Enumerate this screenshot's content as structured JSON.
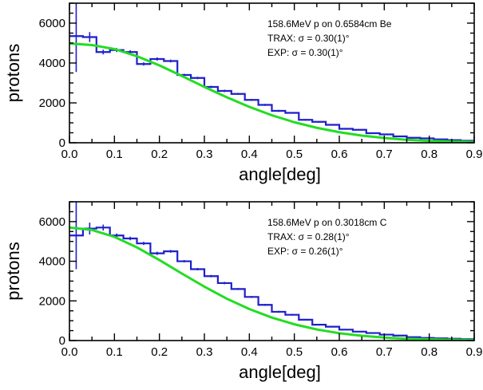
{
  "chart_data": [
    {
      "type": "line",
      "xlabel": "angle[deg]",
      "ylabel": "protons",
      "xlim": [
        0,
        0.9
      ],
      "ylim": [
        0,
        7000
      ],
      "xticks": [
        "0.0",
        "0.1",
        "0.2",
        "0.3",
        "0.4",
        "0.5",
        "0.6",
        "0.7",
        "0.8",
        "0.9"
      ],
      "yticks": [
        "0",
        "2000",
        "4000",
        "6000"
      ],
      "annotations": [
        "158.6MeV p on 0.6584cm Be",
        "TRAX: σ = 0.30(1)°",
        "EXP: σ = 0.30(1)°"
      ],
      "series": [
        {
          "style": "step",
          "color": "#1f1fcc",
          "bin_width": 0.03,
          "x": [
            0.015,
            0.045,
            0.075,
            0.105,
            0.135,
            0.165,
            0.195,
            0.225,
            0.255,
            0.285,
            0.315,
            0.345,
            0.375,
            0.405,
            0.435,
            0.465,
            0.495,
            0.525,
            0.555,
            0.585,
            0.615,
            0.645,
            0.675,
            0.705,
            0.735,
            0.765,
            0.795,
            0.825,
            0.855,
            0.885
          ],
          "values": [
            5350,
            5300,
            4550,
            4650,
            4550,
            3950,
            4200,
            4100,
            3400,
            3250,
            2800,
            2600,
            2450,
            2150,
            1900,
            1600,
            1500,
            1150,
            1050,
            900,
            700,
            650,
            480,
            420,
            320,
            250,
            220,
            170,
            130,
            100
          ],
          "errors": [
            1800,
            250,
            120,
            100,
            90,
            80,
            80,
            70,
            60,
            60,
            60,
            60,
            50,
            50,
            50,
            50,
            40,
            40,
            40,
            40,
            30,
            30,
            30,
            30,
            30,
            20,
            20,
            20,
            20,
            20
          ]
        },
        {
          "style": "smooth",
          "color": "#22dd22",
          "x": [
            0.0,
            0.05,
            0.1,
            0.15,
            0.2,
            0.25,
            0.3,
            0.35,
            0.4,
            0.45,
            0.5,
            0.55,
            0.6,
            0.65,
            0.7,
            0.75,
            0.8,
            0.85,
            0.9
          ],
          "values": [
            4980,
            4900,
            4700,
            4340,
            3880,
            3350,
            2800,
            2280,
            1800,
            1380,
            1030,
            750,
            530,
            360,
            240,
            150,
            95,
            60,
            40
          ]
        }
      ]
    },
    {
      "type": "line",
      "xlabel": "angle[deg]",
      "ylabel": "protons",
      "xlim": [
        0,
        0.9
      ],
      "ylim": [
        0,
        7000
      ],
      "xticks": [
        "0.0",
        "0.1",
        "0.2",
        "0.3",
        "0.4",
        "0.5",
        "0.6",
        "0.7",
        "0.8",
        "0.9"
      ],
      "yticks": [
        "0",
        "2000",
        "4000",
        "6000"
      ],
      "annotations": [
        "158.6MeV p on 0.3018cm C",
        "TRAX: σ = 0.28(1)°",
        "EXP: σ = 0.26(1)°"
      ],
      "series": [
        {
          "style": "step",
          "color": "#1f1fcc",
          "bin_width": 0.03,
          "x": [
            0.015,
            0.045,
            0.075,
            0.105,
            0.135,
            0.165,
            0.195,
            0.225,
            0.255,
            0.285,
            0.315,
            0.345,
            0.375,
            0.405,
            0.435,
            0.465,
            0.495,
            0.525,
            0.555,
            0.585,
            0.615,
            0.645,
            0.675,
            0.705,
            0.735,
            0.765,
            0.795,
            0.825,
            0.855,
            0.885
          ],
          "values": [
            5300,
            5650,
            5700,
            5300,
            5150,
            4900,
            4400,
            4500,
            4000,
            3600,
            3250,
            2900,
            2600,
            2200,
            1800,
            1450,
            1300,
            1050,
            800,
            700,
            550,
            450,
            380,
            300,
            250,
            170,
            130,
            110,
            90,
            70
          ],
          "errors": [
            1700,
            300,
            150,
            100,
            90,
            80,
            80,
            70,
            60,
            60,
            60,
            60,
            50,
            50,
            50,
            50,
            40,
            40,
            40,
            40,
            30,
            30,
            30,
            30,
            30,
            20,
            20,
            20,
            20,
            20
          ]
        },
        {
          "style": "smooth",
          "color": "#22dd22",
          "x": [
            0.0,
            0.05,
            0.1,
            0.15,
            0.2,
            0.25,
            0.3,
            0.35,
            0.4,
            0.45,
            0.5,
            0.55,
            0.6,
            0.65,
            0.7,
            0.75,
            0.8,
            0.85,
            0.9
          ],
          "values": [
            5700,
            5580,
            5230,
            4700,
            4060,
            3380,
            2720,
            2110,
            1590,
            1160,
            820,
            560,
            370,
            240,
            150,
            90,
            60,
            40,
            25
          ]
        }
      ]
    }
  ]
}
